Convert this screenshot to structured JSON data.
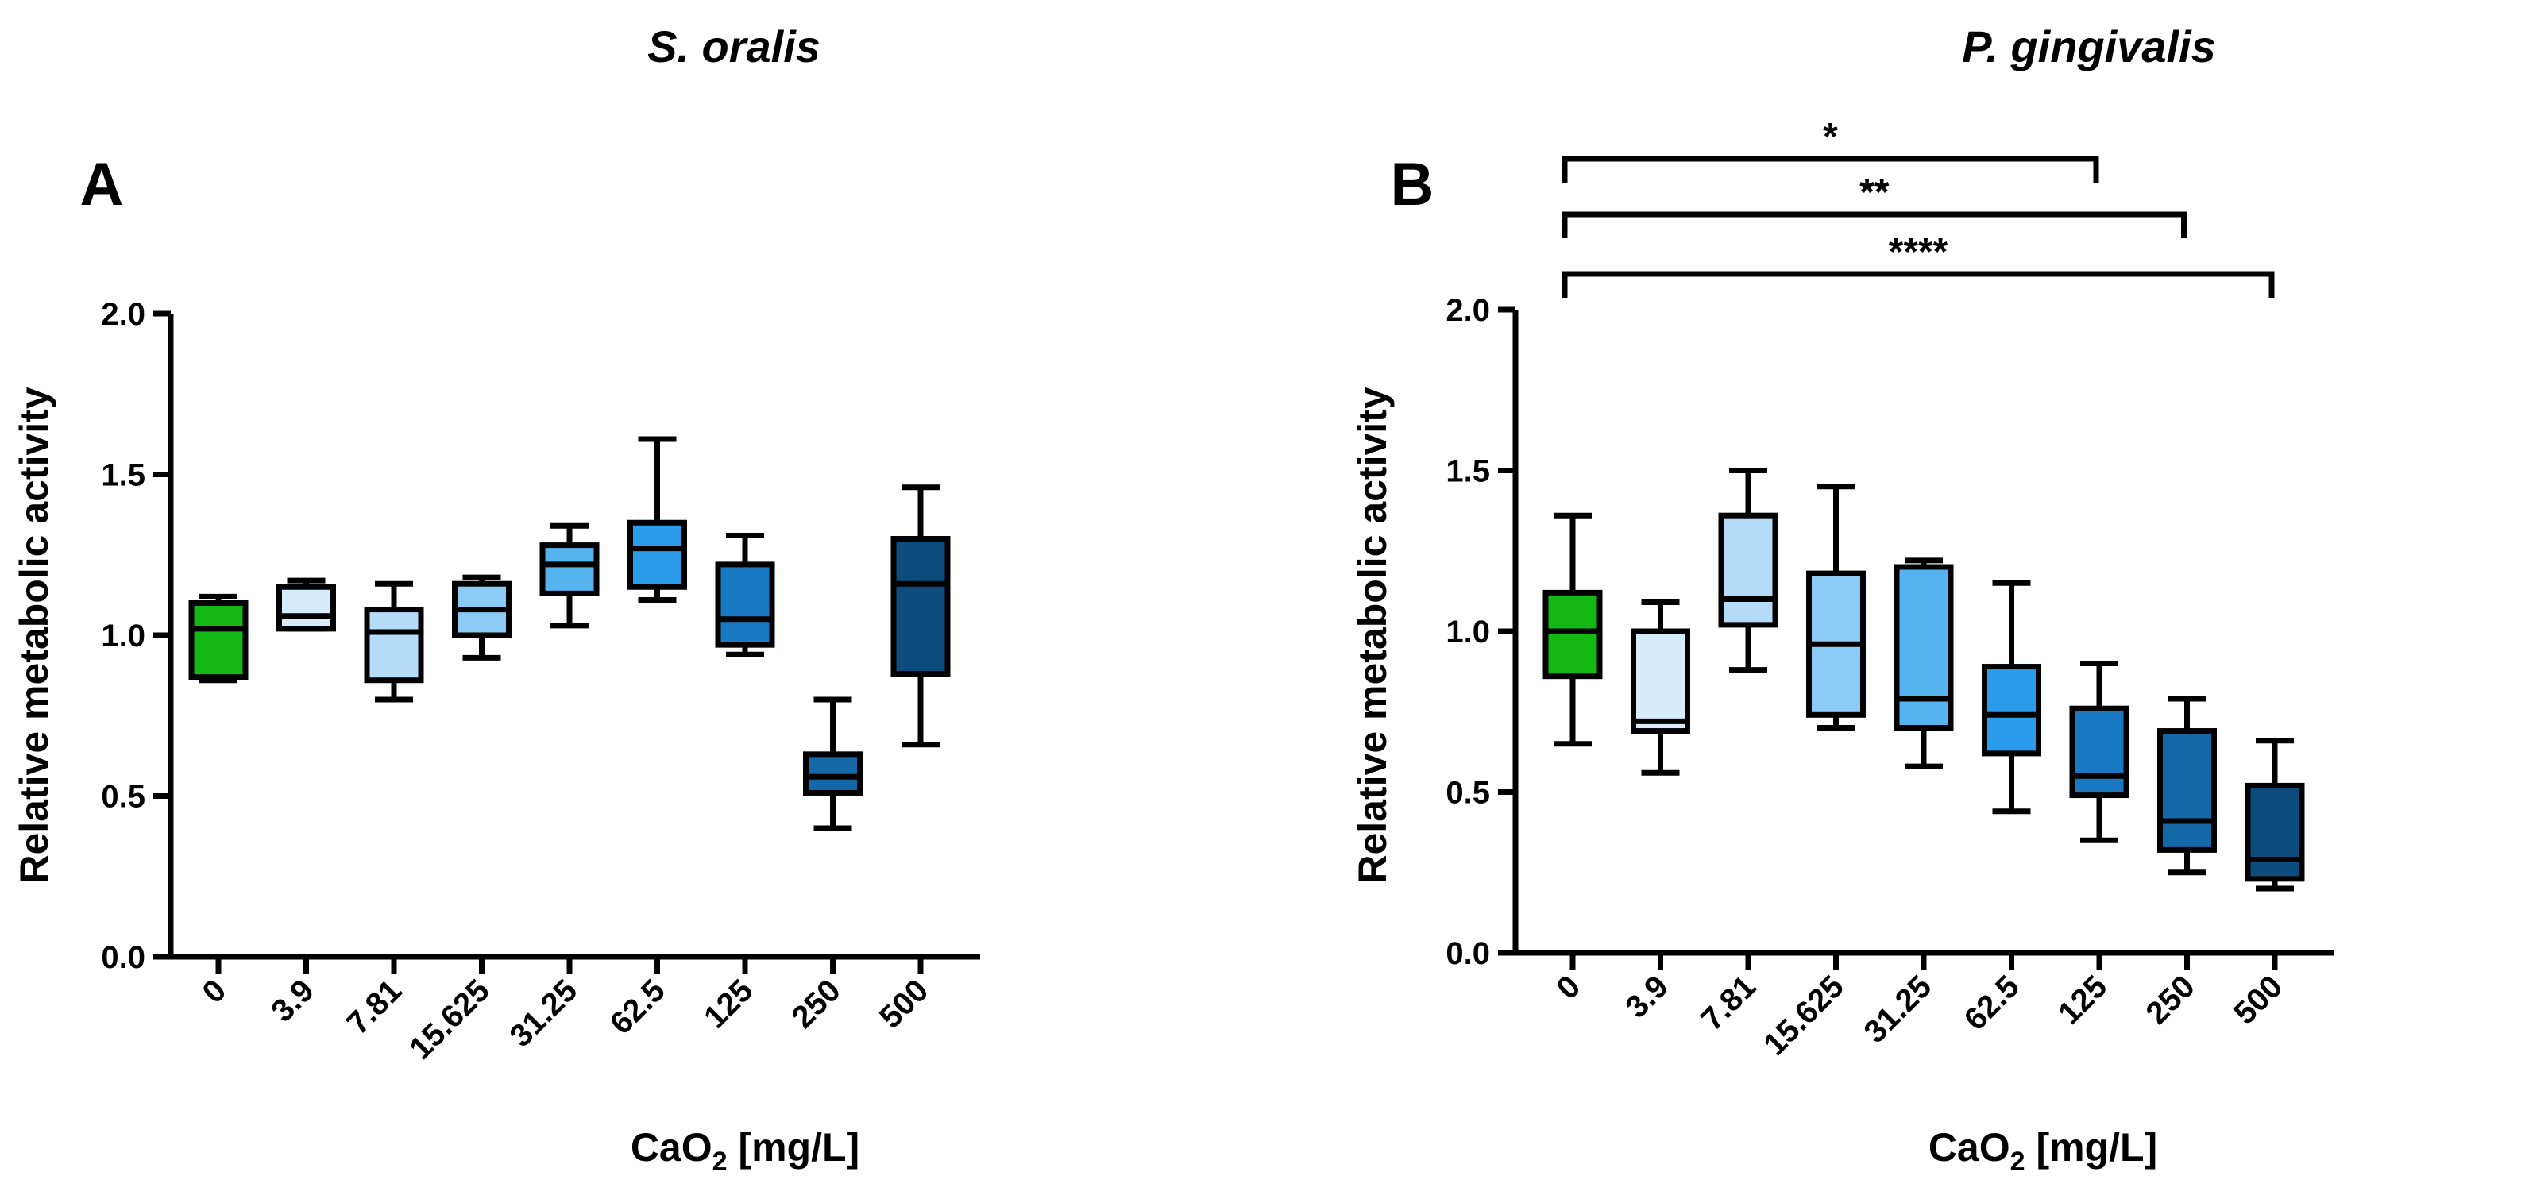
{
  "chart_data": [
    {
      "type": "box",
      "panel": "A",
      "title": "S. oralis",
      "xlabel_main": "CaO",
      "xlabel_sub": "2",
      "xlabel_unit": " [mg/L]",
      "ylabel": "Relative metabolic activity",
      "ylim": [
        0,
        2.0
      ],
      "yticks": [
        0.0,
        0.5,
        1.0,
        1.5,
        2.0
      ],
      "ytick_labels": [
        "0.0",
        "0.5",
        "1.0",
        "1.5",
        "2.0"
      ],
      "categories": [
        "0",
        "3.9",
        "7.81",
        "15.625",
        "31.25",
        "62.5",
        "125",
        "250",
        "500"
      ],
      "colors": [
        "#14b814",
        "#d6ecfb",
        "#b4dcf8",
        "#8ccbf5",
        "#55b4f0",
        "#2a9cea",
        "#1879c2",
        "#1568a8",
        "#0d4d7e"
      ],
      "boxes": [
        {
          "min": 0.86,
          "q1": 0.87,
          "median": 1.02,
          "q3": 1.1,
          "max": 1.12
        },
        {
          "min": 1.02,
          "q1": 1.02,
          "median": 1.06,
          "q3": 1.15,
          "max": 1.17
        },
        {
          "min": 0.8,
          "q1": 0.86,
          "median": 1.01,
          "q3": 1.08,
          "max": 1.16
        },
        {
          "min": 0.93,
          "q1": 1.0,
          "median": 1.08,
          "q3": 1.16,
          "max": 1.18
        },
        {
          "min": 1.03,
          "q1": 1.13,
          "median": 1.22,
          "q3": 1.28,
          "max": 1.34
        },
        {
          "min": 1.11,
          "q1": 1.15,
          "median": 1.27,
          "q3": 1.35,
          "max": 1.61
        },
        {
          "min": 0.94,
          "q1": 0.97,
          "median": 1.05,
          "q3": 1.22,
          "max": 1.31
        },
        {
          "min": 0.4,
          "q1": 0.51,
          "median": 0.56,
          "q3": 0.63,
          "max": 0.8
        },
        {
          "min": 0.66,
          "q1": 0.88,
          "median": 1.16,
          "q3": 1.3,
          "max": 1.46
        }
      ],
      "significance": []
    },
    {
      "type": "box",
      "panel": "B",
      "title": "P. gingivalis",
      "xlabel_main": "CaO",
      "xlabel_sub": "2",
      "xlabel_unit": " [mg/L]",
      "ylabel": "Relative metabolic activity",
      "ylim": [
        0,
        2.0
      ],
      "yticks": [
        0.0,
        0.5,
        1.0,
        1.5,
        2.0
      ],
      "ytick_labels": [
        "0.0",
        "0.5",
        "1.0",
        "1.5",
        "2.0"
      ],
      "categories": [
        "0",
        "3.9",
        "7.81",
        "15.625",
        "31.25",
        "62.5",
        "125",
        "250",
        "500"
      ],
      "colors": [
        "#14b814",
        "#d6ecfb",
        "#b4dcf8",
        "#8ccbf5",
        "#55b4f0",
        "#2a9cea",
        "#1879c2",
        "#1568a8",
        "#0d4d7e"
      ],
      "boxes": [
        {
          "min": 0.65,
          "q1": 0.86,
          "median": 1.0,
          "q3": 1.12,
          "max": 1.36
        },
        {
          "min": 0.56,
          "q1": 0.69,
          "median": 0.72,
          "q3": 1.0,
          "max": 1.09
        },
        {
          "min": 0.88,
          "q1": 1.02,
          "median": 1.1,
          "q3": 1.36,
          "max": 1.5
        },
        {
          "min": 0.7,
          "q1": 0.74,
          "median": 0.96,
          "q3": 1.18,
          "max": 1.45
        },
        {
          "min": 0.58,
          "q1": 0.7,
          "median": 0.79,
          "q3": 1.2,
          "max": 1.22
        },
        {
          "min": 0.44,
          "q1": 0.62,
          "median": 0.74,
          "q3": 0.89,
          "max": 1.15
        },
        {
          "min": 0.35,
          "q1": 0.49,
          "median": 0.55,
          "q3": 0.76,
          "max": 0.9
        },
        {
          "min": 0.25,
          "q1": 0.32,
          "median": 0.41,
          "q3": 0.69,
          "max": 0.79
        },
        {
          "min": 0.2,
          "q1": 0.23,
          "median": 0.29,
          "q3": 0.52,
          "max": 0.66
        }
      ],
      "significance": [
        {
          "from": "0",
          "to": "125",
          "label": "*"
        },
        {
          "from": "0",
          "to": "250",
          "label": "**"
        },
        {
          "from": "0",
          "to": "500",
          "label": "****"
        }
      ]
    }
  ]
}
